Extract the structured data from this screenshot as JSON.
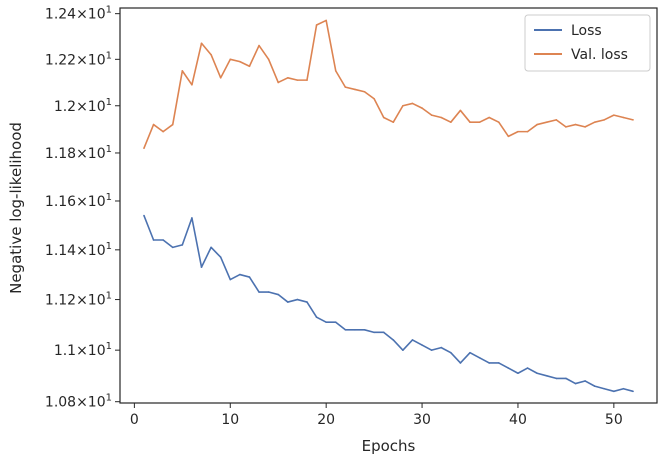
{
  "chart_data": {
    "type": "line",
    "title": "",
    "xlabel": "Epochs",
    "ylabel": "Negative log-likelihood",
    "xlim": [
      -1.5,
      54.5
    ],
    "ylim": [
      10.795,
      12.425
    ],
    "y_scale": "log",
    "grid": false,
    "legend_position": "top-right",
    "x_ticks": [
      0,
      10,
      20,
      30,
      40,
      50
    ],
    "x_tick_labels": [
      "0",
      "10",
      "20",
      "30",
      "40",
      "50"
    ],
    "y_ticks": [
      10.8,
      11.0,
      11.2,
      11.4,
      11.6,
      11.8,
      12.0,
      12.2,
      12.4
    ],
    "y_tick_labels": [
      {
        "mant": "1.08",
        "exp": "1"
      },
      {
        "mant": "1.1",
        "exp": "1"
      },
      {
        "mant": "1.12",
        "exp": "1"
      },
      {
        "mant": "1.14",
        "exp": "1"
      },
      {
        "mant": "1.16",
        "exp": "1"
      },
      {
        "mant": "1.18",
        "exp": "1"
      },
      {
        "mant": "1.2",
        "exp": "1"
      },
      {
        "mant": "1.22",
        "exp": "1"
      },
      {
        "mant": "1.24",
        "exp": "1"
      }
    ],
    "x": [
      1,
      2,
      3,
      4,
      5,
      6,
      7,
      8,
      9,
      10,
      11,
      12,
      13,
      14,
      15,
      16,
      17,
      18,
      19,
      20,
      21,
      22,
      23,
      24,
      25,
      26,
      27,
      28,
      29,
      30,
      31,
      32,
      33,
      34,
      35,
      36,
      37,
      38,
      39,
      40,
      41,
      42,
      43,
      44,
      45,
      46,
      47,
      48,
      49,
      50,
      51,
      52
    ],
    "series": [
      {
        "name": "Loss",
        "color": "#4c72b0",
        "values": [
          11.54,
          11.44,
          11.44,
          11.41,
          11.42,
          11.53,
          11.33,
          11.41,
          11.37,
          11.28,
          11.3,
          11.29,
          11.23,
          11.23,
          11.22,
          11.19,
          11.2,
          11.19,
          11.13,
          11.11,
          11.11,
          11.08,
          11.08,
          11.08,
          11.07,
          11.07,
          11.04,
          11.0,
          11.04,
          11.02,
          11.0,
          11.01,
          10.99,
          10.95,
          10.99,
          10.97,
          10.95,
          10.95,
          10.93,
          10.91,
          10.93,
          10.91,
          10.9,
          10.89,
          10.89,
          10.87,
          10.88,
          10.86,
          10.85,
          10.84,
          10.85,
          10.84
        ]
      },
      {
        "name": "Val. loss",
        "color": "#dd8452",
        "values": [
          11.82,
          11.92,
          11.89,
          11.92,
          12.15,
          12.09,
          12.27,
          12.22,
          12.12,
          12.2,
          12.19,
          12.17,
          12.26,
          12.2,
          12.1,
          12.12,
          12.11,
          12.11,
          12.35,
          12.37,
          12.15,
          12.08,
          12.07,
          12.06,
          12.03,
          11.95,
          11.93,
          12.0,
          12.01,
          11.99,
          11.96,
          11.95,
          11.93,
          11.98,
          11.93,
          11.93,
          11.95,
          11.93,
          11.87,
          11.89,
          11.89,
          11.92,
          11.93,
          11.94,
          11.91,
          11.92,
          11.91,
          11.93,
          11.94,
          11.96,
          11.95,
          11.94
        ]
      }
    ]
  }
}
